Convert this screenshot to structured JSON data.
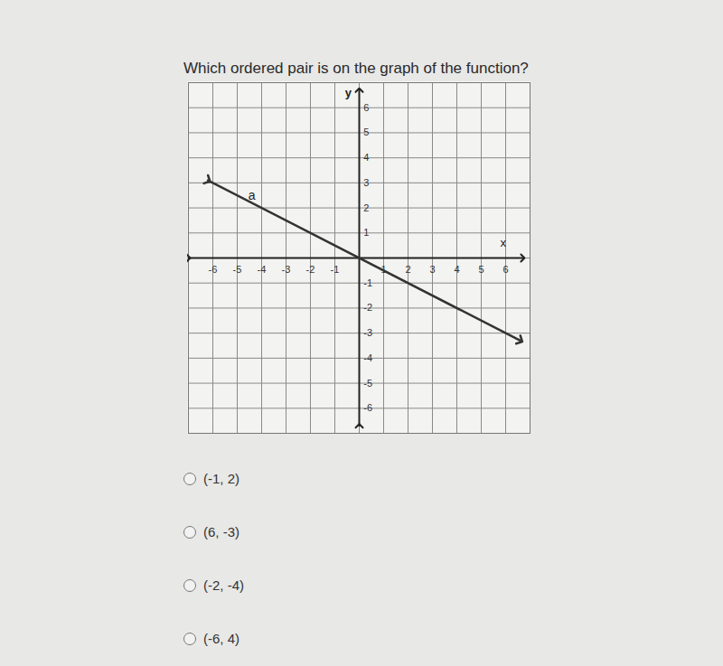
{
  "question": "Which ordered pair is on the graph of the function?",
  "chart_data": {
    "type": "line",
    "x": [
      -6.2,
      6.6
    ],
    "values": [
      3.1,
      -3.3
    ],
    "color": "#333333",
    "marker": "arrow",
    "xlim": [
      -7,
      7
    ],
    "ylim": [
      -7,
      7
    ],
    "xticks": [
      -6,
      -5,
      -4,
      -3,
      -2,
      -1,
      1,
      2,
      3,
      4,
      5,
      6
    ],
    "yticks": [
      -6,
      -5,
      -4,
      -3,
      -2,
      -1,
      1,
      2,
      3,
      4,
      5,
      6
    ],
    "x_label": "x",
    "y_label": "y",
    "grid": true,
    "annotations": [
      {
        "text": "a",
        "x": -4.4,
        "y": 2.5
      }
    ]
  },
  "options": [
    "(-1, 2)",
    "(6, -3)",
    "(-2, -4)",
    "(-6, 4)"
  ]
}
